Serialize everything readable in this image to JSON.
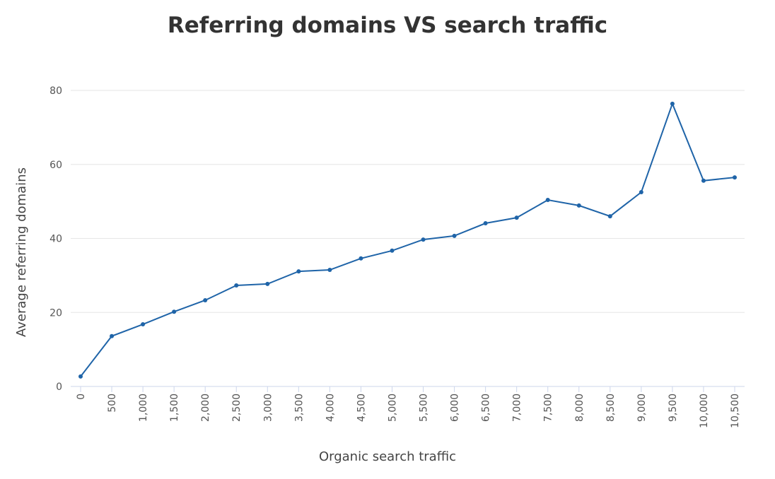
{
  "chart_data": {
    "type": "line",
    "title": "Referring domains VS search traffic",
    "x_label": "Organic search traffic",
    "y_label": "Average referring domains",
    "categories": [
      "0",
      "500",
      "1,000",
      "1,500",
      "2,000",
      "2,500",
      "3,000",
      "3,500",
      "4,000",
      "4,500",
      "5,000",
      "5,500",
      "6,000",
      "6,500",
      "7,000",
      "7,500",
      "8,000",
      "8,500",
      "9,000",
      "9,500",
      "10,000",
      "10,500"
    ],
    "series": [
      {
        "name": "Average referring domains",
        "color": "#1f64a8",
        "values": [
          2.7,
          13.6,
          16.8,
          20.2,
          23.3,
          27.3,
          27.7,
          31.1,
          31.5,
          34.6,
          36.7,
          39.7,
          40.7,
          44.1,
          45.6,
          50.4,
          48.9,
          46.0,
          52.5,
          76.4,
          55.6,
          56.5
        ]
      }
    ],
    "ylim": [
      0,
      80
    ],
    "yticks": [
      0,
      20,
      40,
      60,
      80
    ],
    "grid": true
  }
}
